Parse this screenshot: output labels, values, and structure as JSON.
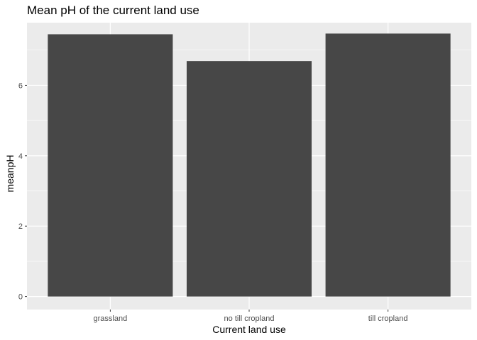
{
  "chart_data": {
    "type": "bar",
    "title": "Mean pH of the current land use",
    "xlabel": "Current land use",
    "ylabel": "meanpH",
    "categories": [
      "grassland",
      "no till cropland",
      "till cropland"
    ],
    "values": [
      7.45,
      6.69,
      7.47
    ],
    "ylim": [
      -0.37,
      7.78
    ],
    "yticks": [
      0,
      2,
      4,
      6
    ],
    "grid": true,
    "bar_color": "#474747",
    "panel_color": "#EBEBEB",
    "grid_color": "#FFFFFF"
  }
}
